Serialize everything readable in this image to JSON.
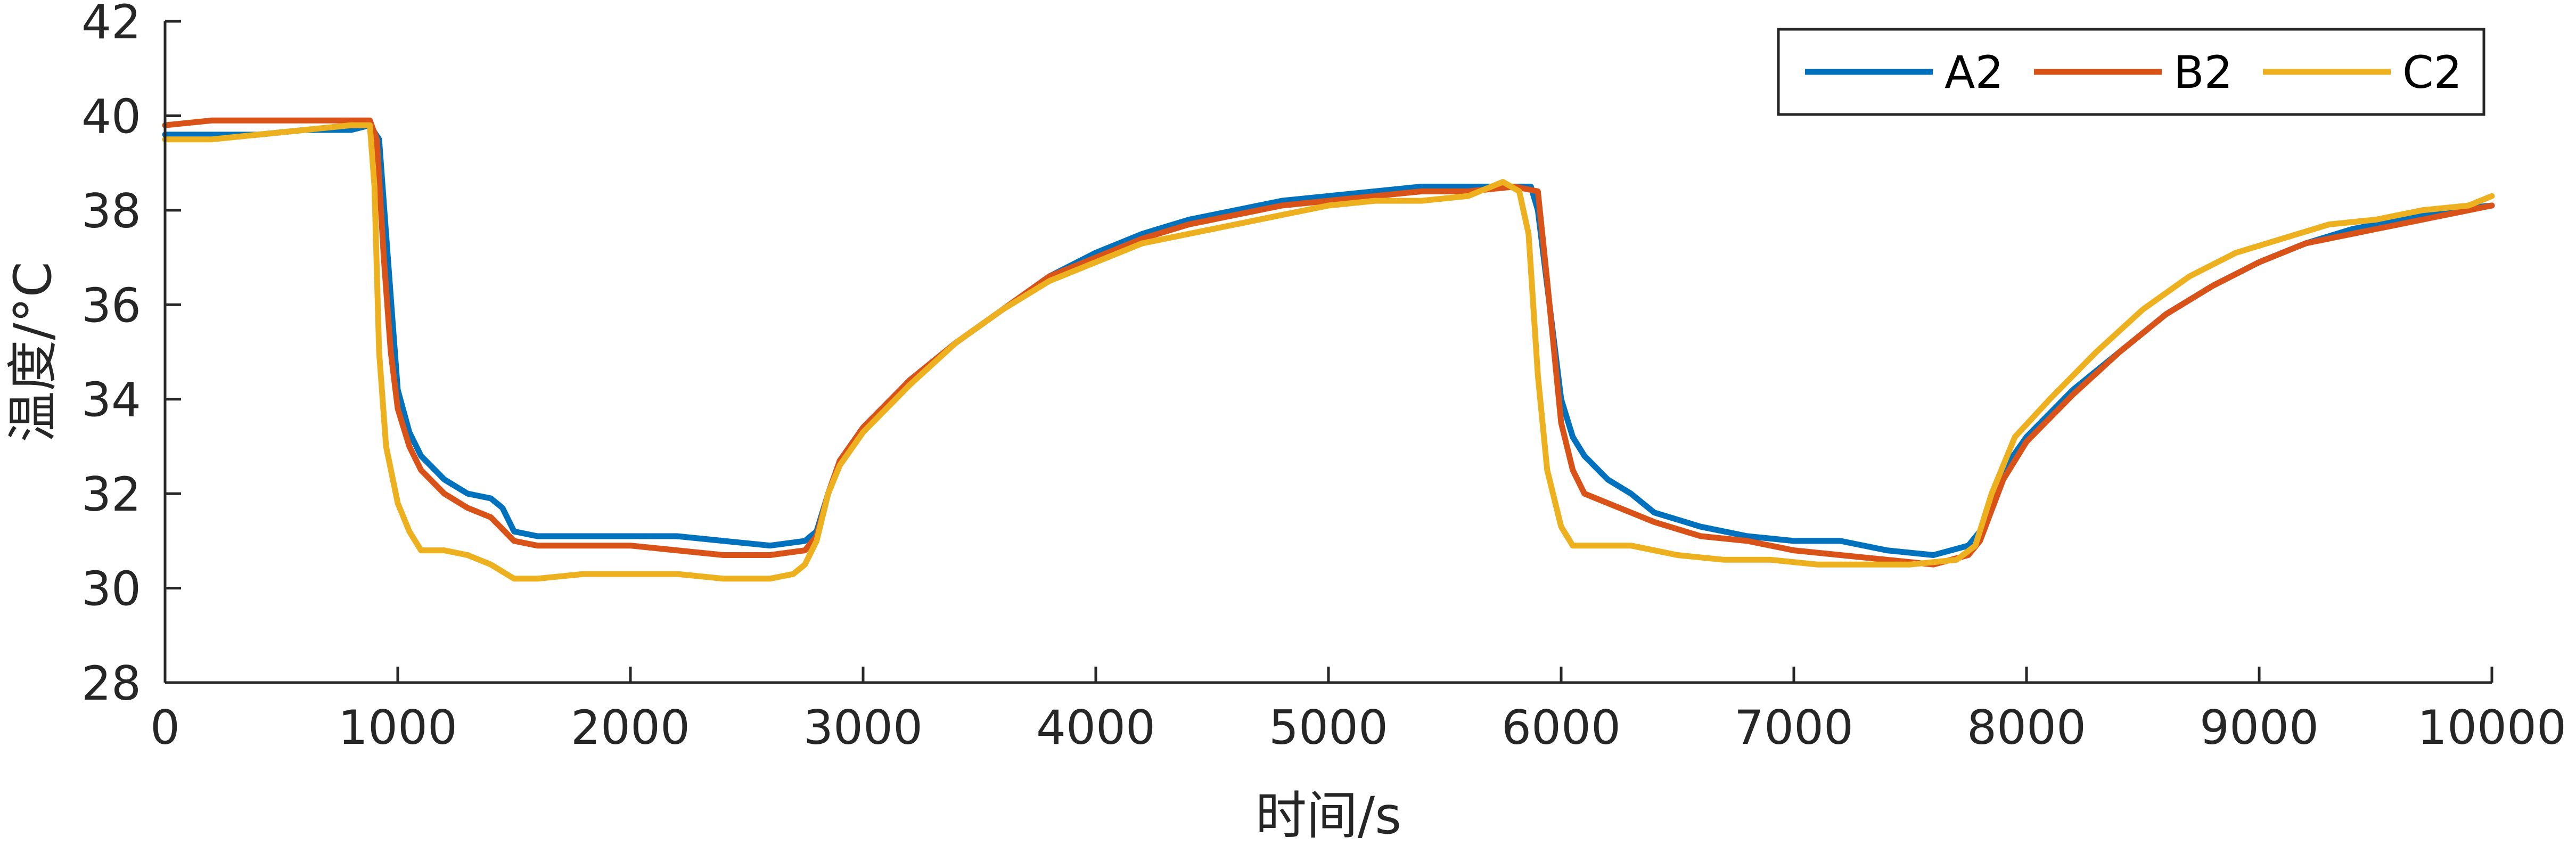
{
  "chart_data": {
    "type": "line",
    "xlabel": "时间/s",
    "ylabel": "温度/°C",
    "xlim": [
      0,
      10000
    ],
    "ylim": [
      28,
      42
    ],
    "xticks": [
      0,
      1000,
      2000,
      3000,
      4000,
      5000,
      6000,
      7000,
      8000,
      9000,
      10000
    ],
    "yticks": [
      28,
      30,
      32,
      34,
      36,
      38,
      40,
      42
    ],
    "grid": false,
    "legend_position": "top-right",
    "series": [
      {
        "name": "A2",
        "color": "#0072BD",
        "points": [
          [
            0,
            39.6
          ],
          [
            200,
            39.6
          ],
          [
            400,
            39.6
          ],
          [
            600,
            39.7
          ],
          [
            800,
            39.7
          ],
          [
            880,
            39.8
          ],
          [
            920,
            39.5
          ],
          [
            950,
            37.5
          ],
          [
            980,
            35.5
          ],
          [
            1000,
            34.2
          ],
          [
            1050,
            33.3
          ],
          [
            1100,
            32.8
          ],
          [
            1200,
            32.3
          ],
          [
            1300,
            32.0
          ],
          [
            1400,
            31.9
          ],
          [
            1450,
            31.7
          ],
          [
            1500,
            31.2
          ],
          [
            1600,
            31.1
          ],
          [
            1800,
            31.1
          ],
          [
            2000,
            31.1
          ],
          [
            2200,
            31.1
          ],
          [
            2400,
            31.0
          ],
          [
            2600,
            30.9
          ],
          [
            2750,
            31.0
          ],
          [
            2800,
            31.2
          ],
          [
            2850,
            32.0
          ],
          [
            2900,
            32.7
          ],
          [
            3000,
            33.4
          ],
          [
            3100,
            33.9
          ],
          [
            3200,
            34.4
          ],
          [
            3400,
            35.2
          ],
          [
            3600,
            35.9
          ],
          [
            3800,
            36.6
          ],
          [
            4000,
            37.1
          ],
          [
            4200,
            37.5
          ],
          [
            4400,
            37.8
          ],
          [
            4600,
            38.0
          ],
          [
            4800,
            38.2
          ],
          [
            5000,
            38.3
          ],
          [
            5200,
            38.4
          ],
          [
            5400,
            38.5
          ],
          [
            5600,
            38.5
          ],
          [
            5800,
            38.5
          ],
          [
            5870,
            38.5
          ],
          [
            5900,
            38.0
          ],
          [
            5950,
            36.0
          ],
          [
            6000,
            34.0
          ],
          [
            6050,
            33.2
          ],
          [
            6100,
            32.8
          ],
          [
            6200,
            32.3
          ],
          [
            6300,
            32.0
          ],
          [
            6400,
            31.6
          ],
          [
            6600,
            31.3
          ],
          [
            6800,
            31.1
          ],
          [
            7000,
            31.0
          ],
          [
            7200,
            31.0
          ],
          [
            7400,
            30.8
          ],
          [
            7600,
            30.7
          ],
          [
            7750,
            30.9
          ],
          [
            7800,
            31.2
          ],
          [
            7900,
            32.5
          ],
          [
            8000,
            33.2
          ],
          [
            8200,
            34.2
          ],
          [
            8400,
            35.0
          ],
          [
            8600,
            35.8
          ],
          [
            8800,
            36.4
          ],
          [
            9000,
            36.9
          ],
          [
            9200,
            37.3
          ],
          [
            9400,
            37.6
          ],
          [
            9600,
            37.8
          ],
          [
            9800,
            38.0
          ],
          [
            10000,
            38.1
          ]
        ]
      },
      {
        "name": "B2",
        "color": "#D95319",
        "points": [
          [
            0,
            39.8
          ],
          [
            200,
            39.9
          ],
          [
            400,
            39.9
          ],
          [
            600,
            39.9
          ],
          [
            800,
            39.9
          ],
          [
            880,
            39.9
          ],
          [
            910,
            39.5
          ],
          [
            940,
            37.0
          ],
          [
            970,
            35.0
          ],
          [
            1000,
            33.8
          ],
          [
            1050,
            33.0
          ],
          [
            1100,
            32.5
          ],
          [
            1200,
            32.0
          ],
          [
            1300,
            31.7
          ],
          [
            1400,
            31.5
          ],
          [
            1500,
            31.0
          ],
          [
            1600,
            30.9
          ],
          [
            1800,
            30.9
          ],
          [
            2000,
            30.9
          ],
          [
            2200,
            30.8
          ],
          [
            2400,
            30.7
          ],
          [
            2600,
            30.7
          ],
          [
            2750,
            30.8
          ],
          [
            2800,
            31.1
          ],
          [
            2850,
            32.0
          ],
          [
            2900,
            32.7
          ],
          [
            3000,
            33.4
          ],
          [
            3100,
            33.9
          ],
          [
            3200,
            34.4
          ],
          [
            3400,
            35.2
          ],
          [
            3600,
            35.9
          ],
          [
            3800,
            36.6
          ],
          [
            4000,
            37.0
          ],
          [
            4200,
            37.4
          ],
          [
            4400,
            37.7
          ],
          [
            4600,
            37.9
          ],
          [
            4800,
            38.1
          ],
          [
            5000,
            38.2
          ],
          [
            5200,
            38.3
          ],
          [
            5400,
            38.4
          ],
          [
            5600,
            38.4
          ],
          [
            5800,
            38.5
          ],
          [
            5900,
            38.4
          ],
          [
            5940,
            36.5
          ],
          [
            5980,
            34.5
          ],
          [
            6000,
            33.5
          ],
          [
            6050,
            32.5
          ],
          [
            6100,
            32.0
          ],
          [
            6200,
            31.8
          ],
          [
            6300,
            31.6
          ],
          [
            6400,
            31.4
          ],
          [
            6600,
            31.1
          ],
          [
            6800,
            31.0
          ],
          [
            7000,
            30.8
          ],
          [
            7200,
            30.7
          ],
          [
            7400,
            30.6
          ],
          [
            7600,
            30.5
          ],
          [
            7750,
            30.7
          ],
          [
            7800,
            31.0
          ],
          [
            7900,
            32.3
          ],
          [
            8000,
            33.1
          ],
          [
            8200,
            34.1
          ],
          [
            8400,
            35.0
          ],
          [
            8600,
            35.8
          ],
          [
            8800,
            36.4
          ],
          [
            9000,
            36.9
          ],
          [
            9200,
            37.3
          ],
          [
            9400,
            37.5
          ],
          [
            9600,
            37.7
          ],
          [
            9800,
            37.9
          ],
          [
            10000,
            38.1
          ]
        ]
      },
      {
        "name": "C2",
        "color": "#EDB120",
        "points": [
          [
            0,
            39.5
          ],
          [
            200,
            39.5
          ],
          [
            400,
            39.6
          ],
          [
            600,
            39.7
          ],
          [
            800,
            39.8
          ],
          [
            880,
            39.8
          ],
          [
            900,
            38.5
          ],
          [
            920,
            35.0
          ],
          [
            950,
            33.0
          ],
          [
            1000,
            31.8
          ],
          [
            1050,
            31.2
          ],
          [
            1100,
            30.8
          ],
          [
            1200,
            30.8
          ],
          [
            1300,
            30.7
          ],
          [
            1400,
            30.5
          ],
          [
            1500,
            30.2
          ],
          [
            1600,
            30.2
          ],
          [
            1800,
            30.3
          ],
          [
            2000,
            30.3
          ],
          [
            2200,
            30.3
          ],
          [
            2400,
            30.2
          ],
          [
            2600,
            30.2
          ],
          [
            2700,
            30.3
          ],
          [
            2750,
            30.5
          ],
          [
            2800,
            31.0
          ],
          [
            2850,
            32.0
          ],
          [
            2900,
            32.6
          ],
          [
            3000,
            33.3
          ],
          [
            3100,
            33.8
          ],
          [
            3200,
            34.3
          ],
          [
            3400,
            35.2
          ],
          [
            3600,
            35.9
          ],
          [
            3800,
            36.5
          ],
          [
            4000,
            36.9
          ],
          [
            4200,
            37.3
          ],
          [
            4400,
            37.5
          ],
          [
            4600,
            37.7
          ],
          [
            4800,
            37.9
          ],
          [
            5000,
            38.1
          ],
          [
            5200,
            38.2
          ],
          [
            5400,
            38.2
          ],
          [
            5600,
            38.3
          ],
          [
            5750,
            38.6
          ],
          [
            5820,
            38.4
          ],
          [
            5860,
            37.5
          ],
          [
            5900,
            34.5
          ],
          [
            5940,
            32.5
          ],
          [
            6000,
            31.3
          ],
          [
            6050,
            30.9
          ],
          [
            6100,
            30.9
          ],
          [
            6300,
            30.9
          ],
          [
            6500,
            30.7
          ],
          [
            6700,
            30.6
          ],
          [
            6900,
            30.6
          ],
          [
            7100,
            30.5
          ],
          [
            7300,
            30.5
          ],
          [
            7500,
            30.5
          ],
          [
            7700,
            30.6
          ],
          [
            7780,
            30.9
          ],
          [
            7850,
            32.0
          ],
          [
            7950,
            33.2
          ],
          [
            8100,
            34.0
          ],
          [
            8300,
            35.0
          ],
          [
            8500,
            35.9
          ],
          [
            8700,
            36.6
          ],
          [
            8900,
            37.1
          ],
          [
            9100,
            37.4
          ],
          [
            9300,
            37.7
          ],
          [
            9500,
            37.8
          ],
          [
            9700,
            38.0
          ],
          [
            9900,
            38.1
          ],
          [
            10000,
            38.3
          ]
        ]
      }
    ]
  }
}
